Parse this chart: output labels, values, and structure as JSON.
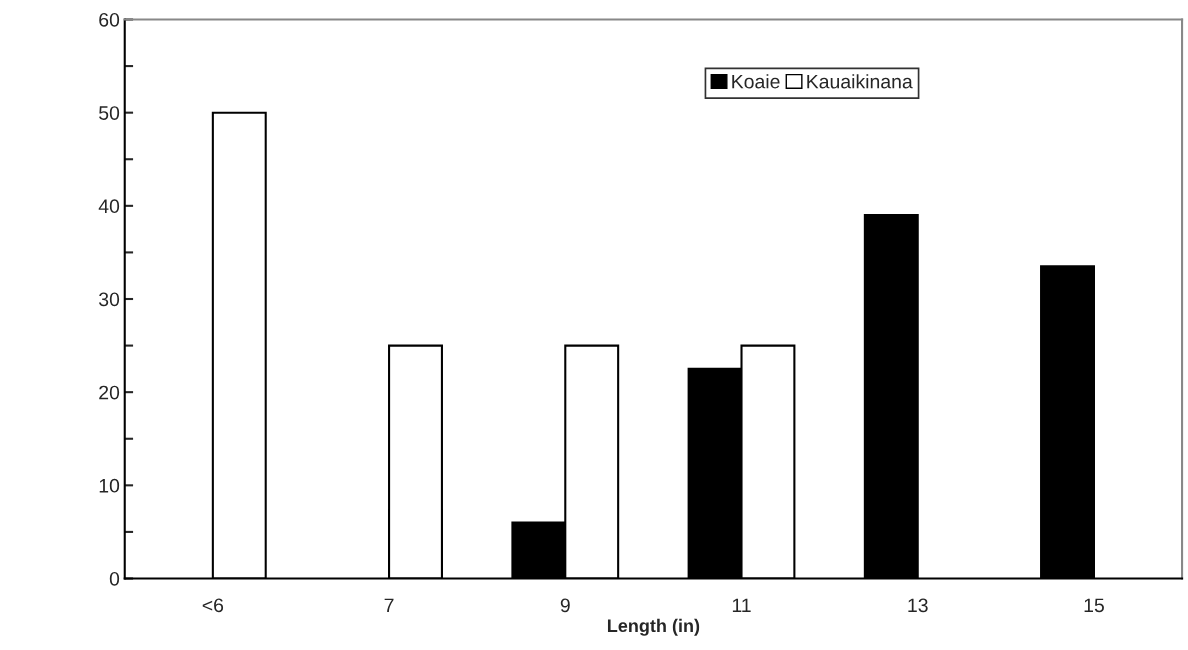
{
  "chart_data": {
    "type": "bar",
    "xlabel": "Length (in)",
    "categories": [
      "<6",
      "7",
      "9",
      "11",
      "13",
      "15"
    ],
    "series": [
      {
        "name": "Koaie",
        "color": "#000000",
        "values": [
          0,
          0,
          6,
          22.5,
          39,
          33.5
        ]
      },
      {
        "name": "Kauaikinana",
        "color": "#ffffff",
        "values": [
          50,
          25,
          25,
          25,
          0,
          0
        ]
      }
    ],
    "ylim": [
      0,
      60
    ],
    "yticks": [
      0,
      {
        "value": 5,
        "label": null
      },
      10,
      {
        "value": 15,
        "label": null
      },
      20,
      {
        "value": 25,
        "label": null
      },
      30,
      {
        "value": 35,
        "label": null
      },
      40,
      {
        "value": 45,
        "label": null
      },
      50,
      {
        "value": 55,
        "label": null
      },
      60
    ],
    "grid": false,
    "legend": "top right"
  }
}
